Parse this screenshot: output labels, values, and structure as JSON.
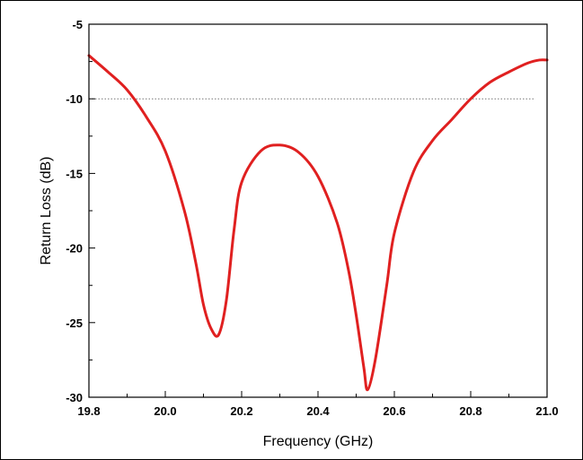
{
  "chart_data": {
    "type": "line",
    "xlabel": "Frequency (GHz)",
    "ylabel": "Return Loss (dB)",
    "xlim": [
      19.8,
      21.0
    ],
    "ylim": [
      -30,
      -5
    ],
    "xticks": [
      19.8,
      20.0,
      20.2,
      20.4,
      20.6,
      20.8,
      21.0
    ],
    "xtick_labels": [
      "19.8",
      "20.0",
      "20.2",
      "20.4",
      "20.6",
      "20.8",
      "21.0"
    ],
    "yticks": [
      -5,
      -10,
      -15,
      -20,
      -25,
      -30
    ],
    "ytick_labels": [
      "-5",
      "-10",
      "-15",
      "-20",
      "-25",
      "-30"
    ],
    "grid": false,
    "reference_line": {
      "y": -10,
      "style": "dotted",
      "color": "#777777"
    },
    "series": [
      {
        "color": "#e02020",
        "x": [
          19.8,
          19.85,
          19.9,
          19.95,
          20.0,
          20.05,
          20.08,
          20.1,
          20.12,
          20.14,
          20.16,
          20.18,
          20.2,
          20.25,
          20.3,
          20.35,
          20.4,
          20.45,
          20.48,
          20.5,
          20.52,
          20.53,
          20.55,
          20.58,
          20.6,
          20.65,
          20.7,
          20.75,
          20.8,
          20.85,
          20.9,
          20.95,
          20.98,
          21.0
        ],
        "y": [
          -7.1,
          -8.2,
          -9.4,
          -11.2,
          -13.5,
          -17.5,
          -21.0,
          -23.8,
          -25.4,
          -25.8,
          -23.5,
          -18.8,
          -15.6,
          -13.5,
          -13.1,
          -13.6,
          -15.2,
          -18.3,
          -21.5,
          -24.5,
          -28.0,
          -29.5,
          -27.5,
          -22.5,
          -19.0,
          -14.9,
          -12.8,
          -11.4,
          -10.0,
          -8.9,
          -8.2,
          -7.6,
          -7.4,
          -7.4
        ]
      }
    ]
  }
}
